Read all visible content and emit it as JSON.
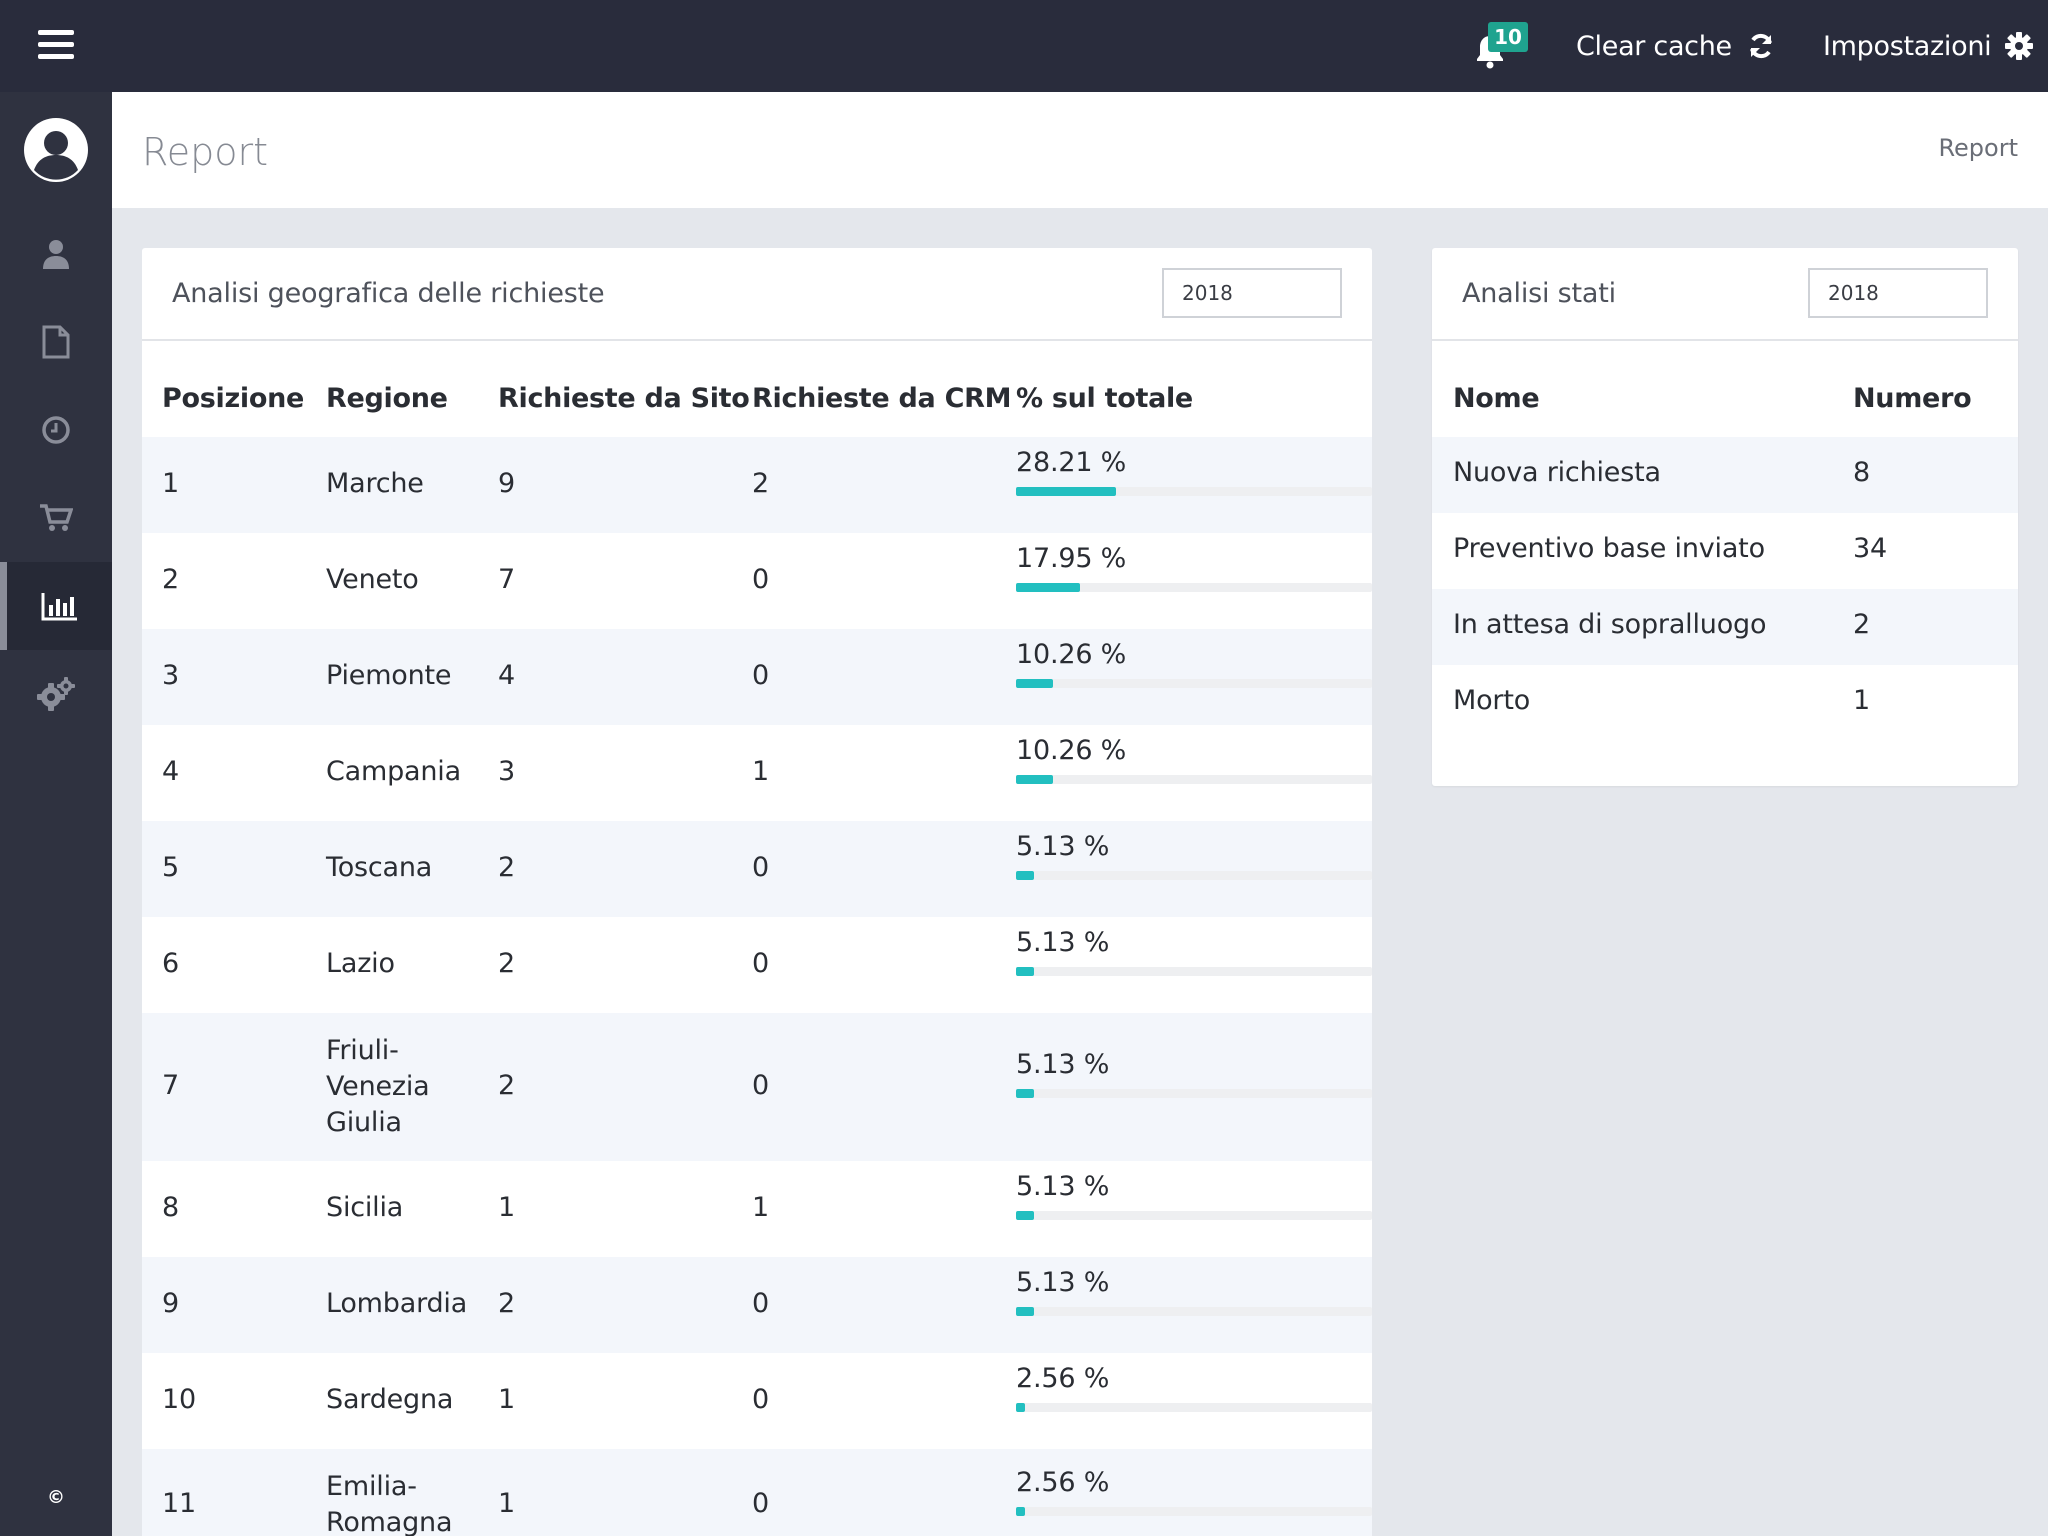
{
  "topbar": {
    "notifications_count": "10",
    "clear_cache_label": "Clear cache",
    "settings_label": "Impostazioni"
  },
  "sidebar": {
    "copyright": "©",
    "active_item": "reports"
  },
  "page": {
    "title": "Report",
    "breadcrumb": "Report"
  },
  "geo_panel": {
    "title": "Analisi geografica delle richieste",
    "year": "2018",
    "columns": [
      "Posizione",
      "Regione",
      "Richieste da Sito",
      "Richieste da CRM",
      "% sul totale"
    ],
    "rows": [
      {
        "pos": "1",
        "region": "Marche",
        "sito": "9",
        "crm": "2",
        "pct_label": "28.21 %",
        "pct": 28.21
      },
      {
        "pos": "2",
        "region": "Veneto",
        "sito": "7",
        "crm": "0",
        "pct_label": "17.95 %",
        "pct": 17.95
      },
      {
        "pos": "3",
        "region": "Piemonte",
        "sito": "4",
        "crm": "0",
        "pct_label": "10.26 %",
        "pct": 10.26
      },
      {
        "pos": "4",
        "region": "Campania",
        "sito": "3",
        "crm": "1",
        "pct_label": "10.26 %",
        "pct": 10.26
      },
      {
        "pos": "5",
        "region": "Toscana",
        "sito": "2",
        "crm": "0",
        "pct_label": "5.13 %",
        "pct": 5.13
      },
      {
        "pos": "6",
        "region": "Lazio",
        "sito": "2",
        "crm": "0",
        "pct_label": "5.13 %",
        "pct": 5.13
      },
      {
        "pos": "7",
        "region": "Friuli-\nVenezia\nGiulia",
        "sito": "2",
        "crm": "0",
        "pct_label": "5.13 %",
        "pct": 5.13
      },
      {
        "pos": "8",
        "region": "Sicilia",
        "sito": "1",
        "crm": "1",
        "pct_label": "5.13 %",
        "pct": 5.13
      },
      {
        "pos": "9",
        "region": "Lombardia",
        "sito": "2",
        "crm": "0",
        "pct_label": "5.13 %",
        "pct": 5.13
      },
      {
        "pos": "10",
        "region": "Sardegna",
        "sito": "1",
        "crm": "0",
        "pct_label": "2.56 %",
        "pct": 2.56
      },
      {
        "pos": "11",
        "region": "Emilia-\nRomagna",
        "sito": "1",
        "crm": "0",
        "pct_label": "2.56 %",
        "pct": 2.56
      }
    ]
  },
  "stati_panel": {
    "title": "Analisi stati",
    "year": "2018",
    "columns": [
      "Nome",
      "Numero"
    ],
    "rows": [
      {
        "name": "Nuova richiesta",
        "count": "8"
      },
      {
        "name": "Preventivo base inviato",
        "count": "34"
      },
      {
        "name": "In attesa di sopralluogo",
        "count": "2"
      },
      {
        "name": "Morto",
        "count": "1"
      }
    ]
  },
  "colors": {
    "topbar": "#292c3c",
    "sidebar": "#2f3240",
    "accent_bar": "#22bfc0",
    "badge": "#1fa38f"
  }
}
